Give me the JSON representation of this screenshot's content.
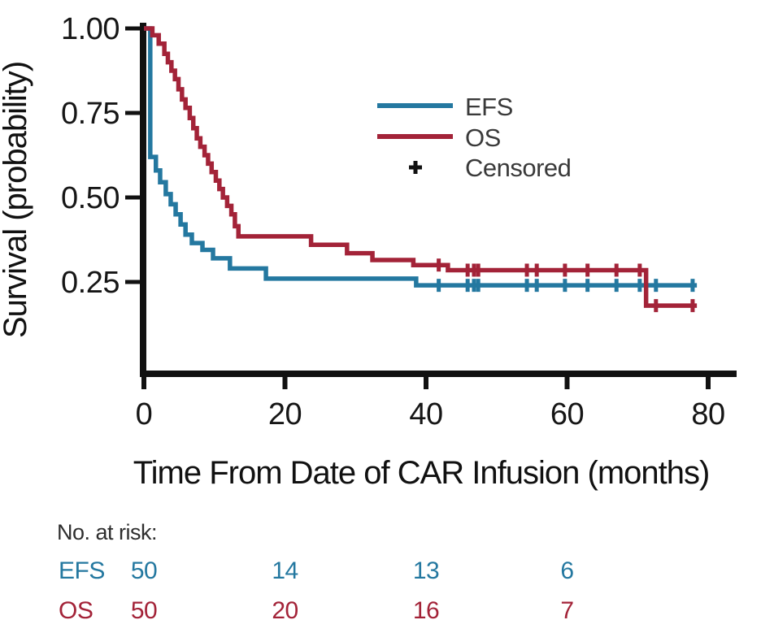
{
  "chart_data": {
    "type": "line",
    "subtype": "kaplan-meier-step",
    "xlabel": "Time From Date of CAR Infusion (months)",
    "ylabel": "Survival (probability)",
    "xlim": [
      0,
      84
    ],
    "ylim": [
      0,
      1.0
    ],
    "grid": "off",
    "xticks": [
      0,
      20,
      40,
      60,
      80
    ],
    "xtick_labels": [
      "0",
      "20",
      "40",
      "60",
      "80"
    ],
    "yticks": [
      1.0,
      0.75,
      0.5,
      0.25
    ],
    "ytick_labels": [
      "1.00",
      "0.75",
      "0.50",
      "0.25"
    ],
    "legend": {
      "position": "upper-right-inside",
      "entries": [
        {
          "label": "EFS",
          "type": "line",
          "color": "#2478A0"
        },
        {
          "label": "OS",
          "type": "line",
          "color": "#A32338"
        },
        {
          "label": "Censored",
          "type": "marker",
          "symbol": "+",
          "color": "#111111"
        }
      ]
    },
    "series": [
      {
        "name": "EFS",
        "color": "#2478A0",
        "steps": [
          [
            0,
            1.0
          ],
          [
            0.9,
            0.62
          ],
          [
            1.7,
            0.58
          ],
          [
            2.3,
            0.545
          ],
          [
            3.1,
            0.51
          ],
          [
            3.8,
            0.48
          ],
          [
            4.5,
            0.45
          ],
          [
            5.2,
            0.42
          ],
          [
            5.9,
            0.39
          ],
          [
            6.8,
            0.365
          ],
          [
            8.3,
            0.345
          ],
          [
            9.8,
            0.32
          ],
          [
            12.2,
            0.29
          ],
          [
            17.3,
            0.26
          ],
          [
            38.6,
            0.24
          ]
        ],
        "censor_times": [
          41.8,
          45.9,
          46.8,
          47.4,
          54.3,
          55.7,
          59.7,
          62.9,
          67.0,
          70.3,
          72.6,
          77.8
        ],
        "end_time": 78.4
      },
      {
        "name": "OS",
        "color": "#A32338",
        "steps": [
          [
            0,
            1.0
          ],
          [
            1.2,
            0.98
          ],
          [
            2.1,
            0.955
          ],
          [
            2.9,
            0.925
          ],
          [
            3.4,
            0.9
          ],
          [
            3.9,
            0.875
          ],
          [
            4.4,
            0.85
          ],
          [
            4.9,
            0.82
          ],
          [
            5.4,
            0.79
          ],
          [
            5.9,
            0.765
          ],
          [
            6.5,
            0.735
          ],
          [
            7.0,
            0.705
          ],
          [
            7.5,
            0.675
          ],
          [
            8.0,
            0.65
          ],
          [
            8.6,
            0.625
          ],
          [
            9.1,
            0.6
          ],
          [
            9.6,
            0.575
          ],
          [
            10.2,
            0.55
          ],
          [
            10.7,
            0.525
          ],
          [
            11.2,
            0.5
          ],
          [
            11.8,
            0.475
          ],
          [
            12.4,
            0.45
          ],
          [
            12.9,
            0.415
          ],
          [
            13.4,
            0.385
          ],
          [
            23.7,
            0.36
          ],
          [
            28.8,
            0.335
          ],
          [
            32.4,
            0.315
          ],
          [
            38.2,
            0.3
          ],
          [
            43.1,
            0.285
          ],
          [
            71.2,
            0.18
          ]
        ],
        "censor_times": [
          41.8,
          45.9,
          46.8,
          47.4,
          54.3,
          55.7,
          59.7,
          62.9,
          67.0,
          70.3,
          72.6,
          77.8
        ],
        "end_time": 78.4
      }
    ],
    "risk_table": {
      "title": "No. at risk:",
      "times": [
        0,
        20,
        40,
        60
      ],
      "rows": [
        {
          "label": "EFS",
          "color": "#2478A0",
          "counts": [
            "50",
            "14",
            "13",
            "6"
          ]
        },
        {
          "label": "OS",
          "color": "#A32338",
          "counts": [
            "50",
            "20",
            "16",
            "7"
          ]
        }
      ]
    },
    "axis_color": "#111111"
  }
}
